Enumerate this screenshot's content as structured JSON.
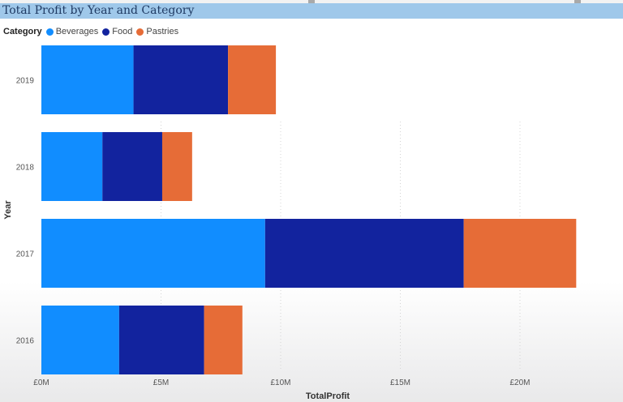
{
  "chart_data": {
    "type": "bar",
    "orientation": "horizontal",
    "stacked": true,
    "title": "Total Profit by Year and Category",
    "legend_title": "Category",
    "legend_position": "top-left",
    "xlabel": "TotalProfit",
    "ylabel": "Year",
    "categories": [
      "2019",
      "2018",
      "2017",
      "2016"
    ],
    "series": [
      {
        "name": "Beverages",
        "color": "#118dff",
        "values": [
          3.85,
          2.55,
          9.35,
          3.25
        ]
      },
      {
        "name": "Food",
        "color": "#12239e",
        "values": [
          3.95,
          2.5,
          8.3,
          3.55
        ]
      },
      {
        "name": "Pastries",
        "color": "#e66c37",
        "values": [
          2.0,
          1.25,
          4.7,
          1.6
        ]
      }
    ],
    "xlim": [
      0,
      22.5
    ],
    "x_ticks": [
      {
        "value": 0,
        "label": "£0M"
      },
      {
        "value": 5,
        "label": "£5M"
      },
      {
        "value": 10,
        "label": "£10M"
      },
      {
        "value": 15,
        "label": "£15M"
      },
      {
        "value": 20,
        "label": "£20M"
      }
    ],
    "grid": true
  }
}
